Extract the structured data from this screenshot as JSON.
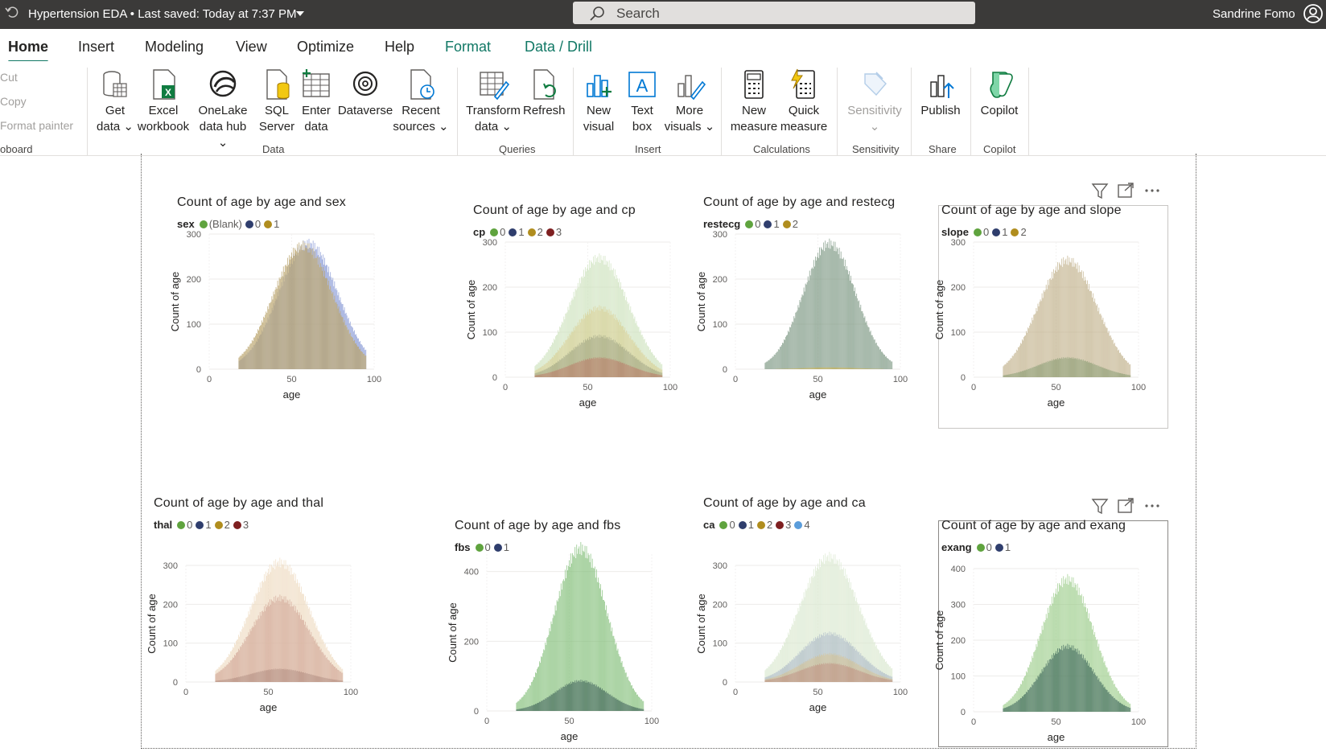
{
  "titlebar": {
    "doc_title": "Hypertension EDA",
    "separator": "•",
    "saved_status": "Last saved: Today at 7:37 PM",
    "search_placeholder": "Search",
    "user_name": "Sandrine Fomo"
  },
  "tabs": [
    {
      "label": "Home",
      "active": true
    },
    {
      "label": "Insert"
    },
    {
      "label": "Modeling"
    },
    {
      "label": "View"
    },
    {
      "label": "Optimize"
    },
    {
      "label": "Help"
    },
    {
      "label": "Format",
      "contextual": true
    },
    {
      "label": "Data / Drill",
      "contextual": true
    }
  ],
  "ribbon": {
    "clipboard": {
      "cut": "Cut",
      "copy": "Copy",
      "format_painter": "Format painter",
      "group": "oboard"
    },
    "data_group": "Data",
    "get_data": "Get data",
    "excel_workbook": "Excel workbook",
    "onelake": "OneLake data hub",
    "sql_server": "SQL Server",
    "enter_data": "Enter data",
    "dataverse": "Dataverse",
    "recent_sources": "Recent sources",
    "queries_group": "Queries",
    "transform_data": "Transform data",
    "refresh": "Refresh",
    "insert_group": "Insert",
    "new_visual": "New visual",
    "text_box": "Text box",
    "more_visuals": "More visuals",
    "calculations_group": "Calculations",
    "new_measure": "New measure",
    "quick_measure": "Quick measure",
    "sensitivity_group": "Sensitivity",
    "sensitivity": "Sensitivity",
    "share_group": "Share",
    "publish": "Publish",
    "copilot_group": "Copilot",
    "copilot": "Copilot"
  },
  "colors": {
    "green": "#5fa33e",
    "navy": "#2f3e6d",
    "gold": "#b08d1e",
    "maroon": "#7e1f20",
    "light_blue": "#5b9ddb",
    "accent": "#117865"
  },
  "visuals": [
    {
      "title": "Count of age by age and sex",
      "legend_title": "sex",
      "legend": [
        {
          "label": "(Blank)",
          "color": "#5fa33e"
        },
        {
          "label": "0",
          "color": "#2f3e6d"
        },
        {
          "label": "1",
          "color": "#b08d1e"
        }
      ]
    },
    {
      "title": "Count of age by age and cp",
      "legend_title": "cp",
      "legend": [
        {
          "label": "0",
          "color": "#5fa33e"
        },
        {
          "label": "1",
          "color": "#2f3e6d"
        },
        {
          "label": "2",
          "color": "#b08d1e"
        },
        {
          "label": "3",
          "color": "#7e1f20"
        }
      ]
    },
    {
      "title": "Count of age by age and restecg",
      "legend_title": "restecg",
      "legend": [
        {
          "label": "0",
          "color": "#5fa33e"
        },
        {
          "label": "1",
          "color": "#2f3e6d"
        },
        {
          "label": "2",
          "color": "#b08d1e"
        }
      ]
    },
    {
      "title": "Count of age by age and slope",
      "legend_title": "slope",
      "legend": [
        {
          "label": "0",
          "color": "#5fa33e"
        },
        {
          "label": "1",
          "color": "#2f3e6d"
        },
        {
          "label": "2",
          "color": "#b08d1e"
        }
      ]
    },
    {
      "title": "Count of age by age and thal",
      "legend_title": "thal",
      "legend": [
        {
          "label": "0",
          "color": "#5fa33e"
        },
        {
          "label": "1",
          "color": "#2f3e6d"
        },
        {
          "label": "2",
          "color": "#b08d1e"
        },
        {
          "label": "3",
          "color": "#7e1f20"
        }
      ]
    },
    {
      "title": "Count of age by age and fbs",
      "legend_title": "fbs",
      "legend": [
        {
          "label": "0",
          "color": "#5fa33e"
        },
        {
          "label": "1",
          "color": "#2f3e6d"
        }
      ]
    },
    {
      "title": "Count of age by age and ca",
      "legend_title": "ca",
      "legend": [
        {
          "label": "0",
          "color": "#5fa33e"
        },
        {
          "label": "1",
          "color": "#2f3e6d"
        },
        {
          "label": "2",
          "color": "#b08d1e"
        },
        {
          "label": "3",
          "color": "#7e1f20"
        },
        {
          "label": "4",
          "color": "#5b9ddb"
        }
      ]
    },
    {
      "title": "Count of age by age and exang",
      "legend_title": "exang",
      "legend": [
        {
          "label": "0",
          "color": "#5fa33e"
        },
        {
          "label": "1",
          "color": "#2f3e6d"
        }
      ]
    }
  ],
  "chart_data": [
    {
      "type": "bar",
      "title": "Count of age by age and sex",
      "xlabel": "age",
      "ylabel": "Count of age",
      "xlim": [
        0,
        100
      ],
      "ylim": [
        0,
        300
      ],
      "yticks": [
        0,
        100,
        200,
        300
      ],
      "xticks": [
        0,
        50,
        100
      ],
      "overlapping": true,
      "series": [
        {
          "name": "0",
          "color": "#8a9bd6",
          "center": 60,
          "peak": 290,
          "width": 18
        },
        {
          "name": "1",
          "color": "#b9a36a",
          "center": 57,
          "peak": 285,
          "width": 18
        }
      ]
    },
    {
      "type": "bar",
      "title": "Count of age by age and cp",
      "xlabel": "age",
      "ylabel": "Count of age",
      "xlim": [
        0,
        100
      ],
      "ylim": [
        0,
        300
      ],
      "yticks": [
        0,
        100,
        200,
        300
      ],
      "xticks": [
        0,
        50,
        100
      ],
      "overlapping": true,
      "series": [
        {
          "name": "0",
          "color": "#cfe3bf",
          "center": 57,
          "peak": 275,
          "width": 18
        },
        {
          "name": "2",
          "color": "#d8d29a",
          "center": 57,
          "peak": 160,
          "width": 18
        },
        {
          "name": "1",
          "color": "#a9ad88",
          "center": 57,
          "peak": 95,
          "width": 18
        },
        {
          "name": "3",
          "color": "#b9856f",
          "center": 57,
          "peak": 45,
          "width": 18
        }
      ]
    },
    {
      "type": "bar",
      "title": "Count of age by age and restecg",
      "xlabel": "age",
      "ylabel": "Count of age",
      "xlim": [
        0,
        100
      ],
      "ylim": [
        0,
        300
      ],
      "yticks": [
        0,
        100,
        200,
        300
      ],
      "xticks": [
        0,
        50,
        100
      ],
      "overlapping": true,
      "series": [
        {
          "name": "0",
          "color": "#7f9a85",
          "center": 57,
          "peak": 290,
          "width": 16
        },
        {
          "name": "2",
          "color": "#c7b35a",
          "center": 57,
          "peak": 4,
          "width": 16
        }
      ]
    },
    {
      "type": "bar",
      "title": "Count of age by age and slope",
      "xlabel": "age",
      "ylabel": "Count of age",
      "xlim": [
        0,
        100
      ],
      "ylim": [
        0,
        300
      ],
      "yticks": [
        0,
        100,
        200,
        300
      ],
      "xticks": [
        0,
        50,
        100
      ],
      "overlapping": true,
      "series": [
        {
          "name": "2",
          "color": "#c3b38e",
          "center": 57,
          "peak": 270,
          "width": 18
        },
        {
          "name": "1",
          "color": "#93a179",
          "center": 57,
          "peak": 45,
          "width": 18
        }
      ]
    },
    {
      "type": "bar",
      "title": "Count of age by age and thal",
      "xlabel": "age",
      "ylabel": "Count of age",
      "xlim": [
        0,
        100
      ],
      "ylim": [
        0,
        300
      ],
      "yticks": [
        0,
        100,
        200,
        300
      ],
      "xticks": [
        0,
        50,
        100
      ],
      "overlapping": true,
      "series": [
        {
          "name": "2",
          "color": "#efdcc3",
          "center": 57,
          "peak": 320,
          "width": 18
        },
        {
          "name": "3",
          "color": "#d4ab9a",
          "center": 57,
          "peak": 225,
          "width": 18
        },
        {
          "name": "1",
          "color": "#b99588",
          "center": 57,
          "peak": 35,
          "width": 18
        }
      ]
    },
    {
      "type": "bar",
      "title": "Count of age by age and fbs",
      "xlabel": "age",
      "ylabel": "Count of age",
      "xlim": [
        0,
        100
      ],
      "ylim": [
        0,
        450
      ],
      "yticks": [
        0,
        200,
        400
      ],
      "xticks": [
        0,
        50,
        100
      ],
      "overlapping": true,
      "series": [
        {
          "name": "0",
          "color": "#85c07c",
          "center": 57,
          "peak": 485,
          "width": 16
        },
        {
          "name": "1",
          "color": "#486d5e",
          "center": 57,
          "peak": 90,
          "width": 16
        }
      ]
    },
    {
      "type": "bar",
      "title": "Count of age by age and ca",
      "xlabel": "age",
      "ylabel": "Count of age",
      "xlim": [
        0,
        100
      ],
      "ylim": [
        0,
        300
      ],
      "yticks": [
        0,
        100,
        200,
        300
      ],
      "xticks": [
        0,
        50,
        100
      ],
      "overlapping": true,
      "series": [
        {
          "name": "0",
          "color": "#dbe9d1",
          "center": 57,
          "peak": 335,
          "width": 18
        },
        {
          "name": "1",
          "color": "#b2bfc9",
          "center": 57,
          "peak": 130,
          "width": 18
        },
        {
          "name": "2",
          "color": "#d1c29c",
          "center": 57,
          "peak": 75,
          "width": 18
        },
        {
          "name": "3",
          "color": "#c29a88",
          "center": 57,
          "peak": 50,
          "width": 18
        }
      ]
    },
    {
      "type": "bar",
      "title": "Count of age by age and exang",
      "xlabel": "age",
      "ylabel": "Count of age",
      "xlim": [
        0,
        100
      ],
      "ylim": [
        0,
        400
      ],
      "yticks": [
        0,
        100,
        200,
        300,
        400
      ],
      "xticks": [
        0,
        50,
        100
      ],
      "overlapping": true,
      "series": [
        {
          "name": "0",
          "color": "#9fce8e",
          "center": 57,
          "peak": 385,
          "width": 16
        },
        {
          "name": "1",
          "color": "#46705f",
          "center": 57,
          "peak": 190,
          "width": 16
        }
      ]
    }
  ]
}
